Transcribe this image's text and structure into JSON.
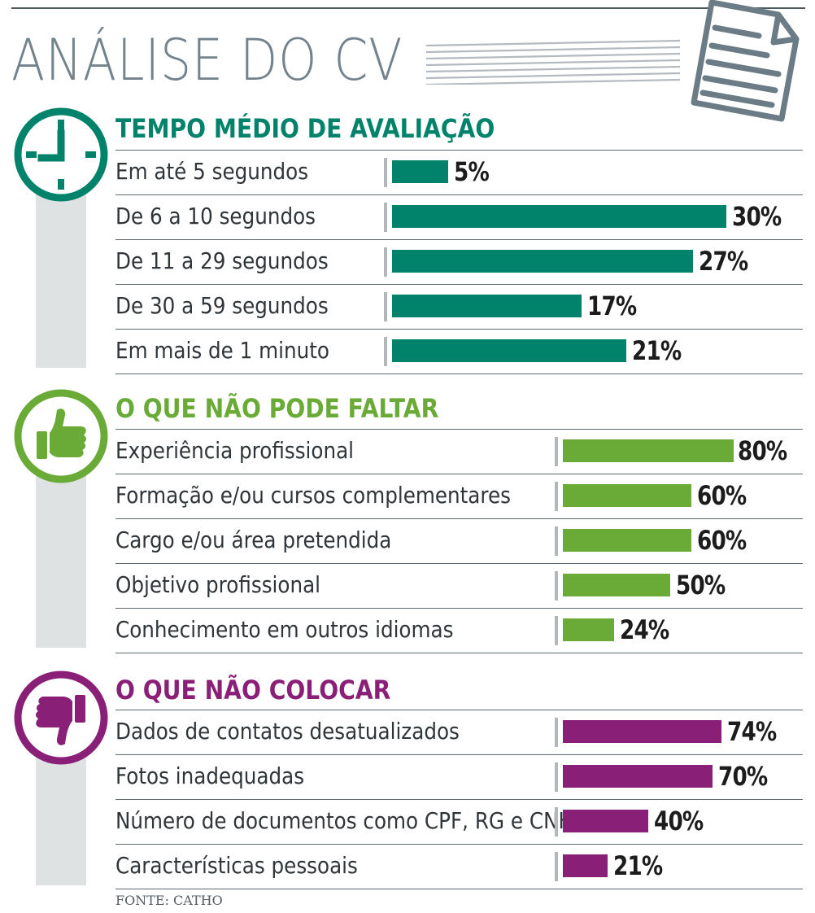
{
  "title": "ANÁLISE DO CV",
  "source": "FONTE: CATHO",
  "colors": {
    "accent_green": "#00836a",
    "accent_lightgreen": "#6aaa37",
    "accent_purple": "#8a1f78",
    "title_gray": "#73838d"
  },
  "chart_data": [
    {
      "type": "bar",
      "orientation": "horizontal",
      "title": "TEMPO MÉDIO DE AVALIAÇÃO",
      "icon": "clock-icon",
      "color": "#00836a",
      "categories": [
        "Em até 5 segundos",
        "De 6 a 10 segundos",
        "De 11 a 29 segundos",
        "De 30 a 59 segundos",
        "Em mais de 1 minuto"
      ],
      "values": [
        5,
        30,
        27,
        17,
        21
      ],
      "labels": [
        "5%",
        "30%",
        "27%",
        "17%",
        "21%"
      ],
      "unit": "%"
    },
    {
      "type": "bar",
      "orientation": "horizontal",
      "title": "O QUE NÃO PODE FALTAR",
      "icon": "thumbs-up-icon",
      "color": "#6aaa37",
      "categories": [
        "Experiência profissional",
        "Formação e/ou cursos complementares",
        "Cargo e/ou área pretendida",
        "Objetivo profissional",
        "Conhecimento em outros idiomas"
      ],
      "values": [
        80,
        60,
        60,
        50,
        24
      ],
      "labels": [
        "80%",
        "60%",
        "60%",
        "50%",
        "24%"
      ],
      "unit": "%"
    },
    {
      "type": "bar",
      "orientation": "horizontal",
      "title": "O QUE NÃO COLOCAR",
      "icon": "thumbs-down-icon",
      "color": "#8a1f78",
      "categories": [
        "Dados de contatos desatualizados",
        "Fotos inadequadas",
        "Número de documentos como CPF, RG e CNH",
        "Características pessoais"
      ],
      "values": [
        74,
        70,
        40,
        21
      ],
      "labels": [
        "74%",
        "70%",
        "40%",
        "21%"
      ],
      "unit": "%"
    }
  ]
}
